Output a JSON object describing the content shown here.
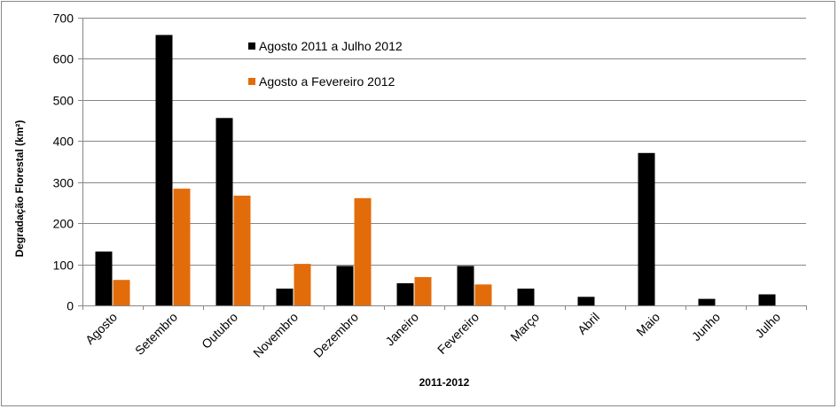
{
  "chart_data": {
    "type": "bar",
    "title": "",
    "xlabel": "2011-2012",
    "ylabel": "Degradação Florestal (km²)",
    "ylim": [
      0,
      700
    ],
    "yticks": [
      0,
      100,
      200,
      300,
      400,
      500,
      600,
      700
    ],
    "grid": true,
    "legend_position": "top-left",
    "categories": [
      "Agosto",
      "Setembro",
      "Outubro",
      "Novembro",
      "Dezembro",
      "Janeiro",
      "Fevereiro",
      "Março",
      "Abril",
      "Maio",
      "Junho",
      "Julho"
    ],
    "series": [
      {
        "name": "Agosto 2011 a Julho 2012",
        "color": "#000000",
        "values": [
          131,
          658,
          456,
          41,
          96,
          54,
          96,
          41,
          21,
          371,
          16,
          27
        ]
      },
      {
        "name": "Agosto a Fevereiro 2012",
        "color": "#E36C0A",
        "values": [
          62,
          284,
          267,
          101,
          261,
          69,
          51,
          null,
          null,
          null,
          null,
          null
        ]
      }
    ]
  }
}
